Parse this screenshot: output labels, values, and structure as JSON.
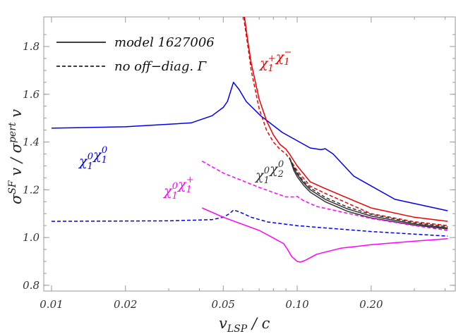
{
  "chart_data": {
    "type": "line",
    "title": "",
    "xlabel": {
      "main": "v",
      "sub": "LSP",
      "rest": " / c"
    },
    "ylabel": {
      "a": "σ",
      "a_sup": "SF",
      "b": " v / σ",
      "b_sup": "pert",
      "c": " v"
    },
    "xscale": "log",
    "xlim": [
      0.0093,
      0.44
    ],
    "ylim": [
      0.776,
      1.924
    ],
    "grid": false,
    "legend_placement": "top-left",
    "legend": [
      {
        "label": "model 1627006",
        "style": "solid"
      },
      {
        "label": "no off−diag. Γ",
        "style": "dashed"
      }
    ],
    "xticks": [
      {
        "v": 0.01,
        "label": "0.01"
      },
      {
        "v": 0.02,
        "label": "0.02"
      },
      {
        "v": 0.05,
        "label": "0.05"
      },
      {
        "v": 0.1,
        "label": "0.10"
      },
      {
        "v": 0.2,
        "label": "0.20"
      }
    ],
    "yticks": [
      {
        "v": 0.8,
        "label": "0.8"
      },
      {
        "v": 1.0,
        "label": "1.0"
      },
      {
        "v": 1.2,
        "label": "1.2"
      },
      {
        "v": 1.4,
        "label": "1.4"
      },
      {
        "v": 1.6,
        "label": "1.6"
      },
      {
        "v": 1.8,
        "label": "1.8"
      }
    ],
    "annotations": [
      {
        "id": "n1n1",
        "color": "#0000ee",
        "parts": [
          [
            "χ",
            ""
          ],
          [
            "1",
            "0"
          ],
          [
            "χ",
            ""
          ],
          [
            "1",
            "0"
          ]
        ]
      },
      {
        "id": "n1c1",
        "color": "#ff00ff",
        "parts": [
          [
            "χ",
            ""
          ],
          [
            "1",
            "0"
          ],
          [
            "χ",
            ""
          ],
          [
            "1",
            "+"
          ]
        ]
      },
      {
        "id": "c1c1",
        "color": "#ee0000",
        "parts": [
          [
            "χ",
            ""
          ],
          [
            "1",
            "+"
          ],
          [
            "χ",
            ""
          ],
          [
            "1",
            "−"
          ]
        ]
      },
      {
        "id": "n1n2",
        "color": "#333333",
        "parts": [
          [
            "χ",
            ""
          ],
          [
            "1",
            "0"
          ],
          [
            "χ",
            ""
          ],
          [
            "2",
            "0"
          ]
        ]
      }
    ],
    "series": [
      {
        "id": "n1n1-model",
        "color": "#0000ee",
        "style": "solid",
        "x": [
          0.01,
          0.02,
          0.037,
          0.045,
          0.05,
          0.052,
          0.055,
          0.058,
          0.062,
          0.071,
          0.087,
          0.113,
          0.125,
          0.13,
          0.14,
          0.17,
          0.25,
          0.41
        ],
        "y": [
          1.458,
          1.464,
          1.48,
          1.51,
          1.545,
          1.57,
          1.65,
          1.62,
          1.57,
          1.51,
          1.44,
          1.375,
          1.368,
          1.372,
          1.35,
          1.257,
          1.16,
          1.112
        ]
      },
      {
        "id": "n1n1-nooff",
        "color": "#0000ee",
        "style": "dashed",
        "x": [
          0.01,
          0.03,
          0.045,
          0.05,
          0.053,
          0.055,
          0.058,
          0.065,
          0.076,
          0.1,
          0.13,
          0.2,
          0.41
        ],
        "y": [
          1.068,
          1.07,
          1.075,
          1.085,
          1.1,
          1.115,
          1.108,
          1.085,
          1.065,
          1.05,
          1.04,
          1.025,
          1.006
        ]
      },
      {
        "id": "c1c1-model",
        "color": "#ee0000",
        "style": "solid",
        "x": [
          0.061,
          0.063,
          0.065,
          0.07,
          0.075,
          0.08,
          0.085,
          0.09,
          0.093,
          0.1,
          0.113,
          0.13,
          0.2,
          0.3,
          0.41
        ],
        "y": [
          1.924,
          1.82,
          1.73,
          1.58,
          1.49,
          1.43,
          1.39,
          1.37,
          1.35,
          1.3,
          1.233,
          1.205,
          1.124,
          1.085,
          1.068
        ]
      },
      {
        "id": "c1c1-nooff",
        "color": "#ee0000",
        "style": "dashed",
        "x": [
          0.0605,
          0.063,
          0.065,
          0.07,
          0.075,
          0.08,
          0.085,
          0.09,
          0.093,
          0.1,
          0.113,
          0.13,
          0.2,
          0.3,
          0.41
        ],
        "y": [
          1.924,
          1.8,
          1.7,
          1.54,
          1.45,
          1.4,
          1.37,
          1.35,
          1.33,
          1.28,
          1.215,
          1.185,
          1.1,
          1.066,
          1.05
        ]
      },
      {
        "id": "n1n2-model",
        "color": "#333333",
        "style": "solid",
        "x": [
          0.093,
          0.097,
          0.1,
          0.106,
          0.113,
          0.13,
          0.16,
          0.2,
          0.3,
          0.41
        ],
        "y": [
          1.335,
          1.29,
          1.265,
          1.23,
          1.2,
          1.16,
          1.12,
          1.09,
          1.057,
          1.04
        ],
        "x2": [
          0.093,
          0.097,
          0.1,
          0.106,
          0.113,
          0.13,
          0.16,
          0.2,
          0.3,
          0.41
        ],
        "y2": [
          1.335,
          1.28,
          1.255,
          1.22,
          1.19,
          1.15,
          1.11,
          1.082,
          1.052,
          1.036
        ]
      },
      {
        "id": "n1n2-nooff",
        "color": "#333333",
        "style": "dashed",
        "x": [
          0.093,
          0.097,
          0.1,
          0.106,
          0.113,
          0.13,
          0.16,
          0.2,
          0.3,
          0.41
        ],
        "y": [
          1.335,
          1.295,
          1.272,
          1.237,
          1.208,
          1.168,
          1.128,
          1.097,
          1.062,
          1.045
        ]
      },
      {
        "id": "n1c1-nooff",
        "color": "#ff00ff",
        "style": "dashed",
        "x": [
          0.041,
          0.05,
          0.07,
          0.09,
          0.097,
          0.1,
          0.106,
          0.12,
          0.2,
          0.3,
          0.41
        ],
        "y": [
          1.32,
          1.27,
          1.21,
          1.17,
          1.17,
          1.172,
          1.155,
          1.13,
          1.08,
          1.05,
          1.03
        ]
      },
      {
        "id": "n1c1-model",
        "color": "#ff00ff",
        "style": "solid",
        "x": [
          0.041,
          0.05,
          0.07,
          0.088,
          0.091,
          0.095,
          0.1,
          0.103,
          0.108,
          0.12,
          0.15,
          0.2,
          0.3,
          0.41
        ],
        "y": [
          1.124,
          1.085,
          1.03,
          0.975,
          0.953,
          0.92,
          0.9,
          0.897,
          0.905,
          0.93,
          0.955,
          0.97,
          0.985,
          0.995
        ]
      }
    ]
  }
}
